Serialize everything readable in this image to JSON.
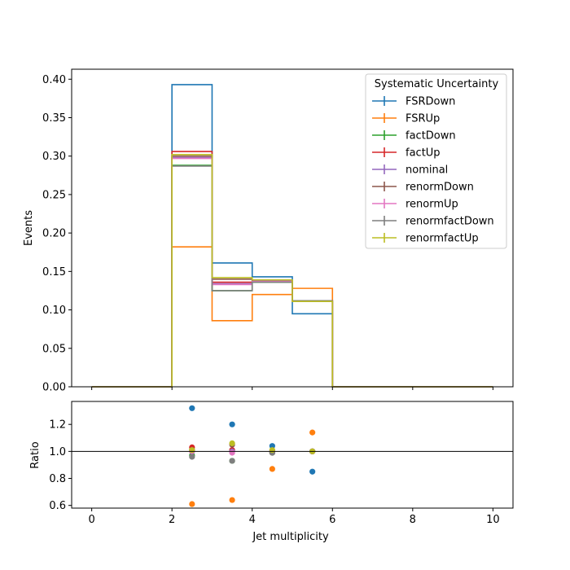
{
  "chart_data": [
    {
      "type": "line",
      "title": "",
      "xlabel": "",
      "ylabel": "Events",
      "xlim": [
        -0.5,
        10.5
      ],
      "ylim": [
        0,
        0.413
      ],
      "bin_edges": [
        0,
        2,
        3,
        4,
        5,
        6,
        10
      ],
      "yticks": [
        "0.00",
        "0.05",
        "0.10",
        "0.15",
        "0.20",
        "0.25",
        "0.30",
        "0.35",
        "0.40"
      ],
      "ytick_values": [
        0,
        0.05,
        0.1,
        0.15,
        0.2,
        0.25,
        0.3,
        0.35,
        0.4
      ],
      "legend": {
        "title": "Systematic Uncertainty",
        "placement": "top-right"
      },
      "series": [
        {
          "name": "FSRDown",
          "color": "#1f77b4",
          "values": [
            0,
            0.393,
            0.161,
            0.143,
            0.095,
            0
          ]
        },
        {
          "name": "FSRUp",
          "color": "#ff7f0e",
          "values": [
            0,
            0.182,
            0.086,
            0.12,
            0.128,
            0
          ]
        },
        {
          "name": "factDown",
          "color": "#2ca02c",
          "values": [
            0,
            0.288,
            0.125,
            0.136,
            0.112,
            0
          ]
        },
        {
          "name": "factUp",
          "color": "#d62728",
          "values": [
            0,
            0.306,
            0.136,
            0.138,
            0.111,
            0
          ]
        },
        {
          "name": "nominal",
          "color": "#9467bd",
          "values": [
            0,
            0.298,
            0.134,
            0.138,
            0.111,
            0
          ]
        },
        {
          "name": "renormDown",
          "color": "#8c564b",
          "values": [
            0,
            0.3,
            0.14,
            0.137,
            0.112,
            0
          ]
        },
        {
          "name": "renormUp",
          "color": "#e377c2",
          "values": [
            0,
            0.297,
            0.133,
            0.137,
            0.111,
            0
          ]
        },
        {
          "name": "renormfactDown",
          "color": "#7f7f7f",
          "values": [
            0,
            0.287,
            0.125,
            0.136,
            0.112,
            0
          ]
        },
        {
          "name": "renormfactUp",
          "color": "#bcbd22",
          "values": [
            0,
            0.302,
            0.142,
            0.139,
            0.111,
            0
          ]
        }
      ]
    },
    {
      "type": "scatter",
      "title": "",
      "xlabel": "Jet multiplicity",
      "ylabel": "Ratio",
      "xlim": [
        -0.5,
        10.5
      ],
      "ylim": [
        0.58,
        1.37
      ],
      "xticks": [
        "0",
        "2",
        "4",
        "6",
        "8",
        "10"
      ],
      "xtick_values": [
        0,
        2,
        4,
        6,
        8,
        10
      ],
      "yticks": [
        "0.6",
        "0.8",
        "1.0",
        "1.2"
      ],
      "ytick_values": [
        0.6,
        0.8,
        1.0,
        1.2
      ],
      "reference_line": 1.0,
      "x": [
        2.5,
        3.5,
        4.5,
        5.5
      ],
      "series": [
        {
          "name": "FSRDown",
          "color": "#1f77b4",
          "values": [
            1.32,
            1.2,
            1.04,
            0.85
          ]
        },
        {
          "name": "FSRUp",
          "color": "#ff7f0e",
          "values": [
            0.61,
            0.64,
            0.87,
            1.14
          ]
        },
        {
          "name": "factDown",
          "color": "#2ca02c",
          "values": [
            0.97,
            0.93,
            0.99,
            1.0
          ]
        },
        {
          "name": "factUp",
          "color": "#d62728",
          "values": [
            1.03,
            1.01,
            1.0,
            1.0
          ]
        },
        {
          "name": "nominal",
          "color": "#9467bd",
          "values": [
            1.0,
            1.0,
            1.0,
            1.0
          ]
        },
        {
          "name": "renormDown",
          "color": "#8c564b",
          "values": [
            1.01,
            1.05,
            0.99,
            1.0
          ]
        },
        {
          "name": "renormUp",
          "color": "#e377c2",
          "values": [
            1.0,
            0.99,
            1.0,
            1.0
          ]
        },
        {
          "name": "renormfactDown",
          "color": "#7f7f7f",
          "values": [
            0.96,
            0.93,
            0.99,
            1.0
          ]
        },
        {
          "name": "renormfactUp",
          "color": "#bcbd22",
          "values": [
            1.01,
            1.06,
            1.01,
            1.0
          ]
        }
      ]
    }
  ]
}
